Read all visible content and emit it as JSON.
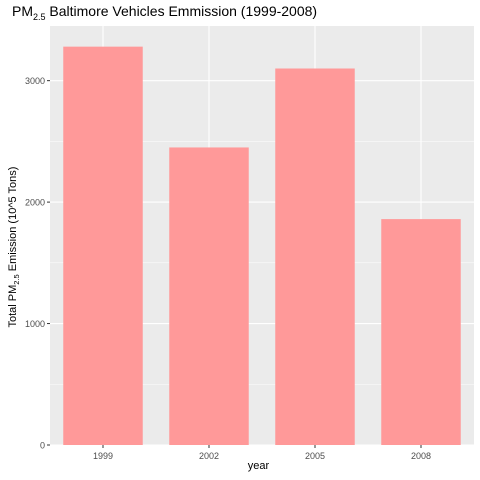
{
  "title": {
    "main": "PM",
    "sub": "2.5",
    "rest": " Baltimore Vehicles Emmission (1999-2008)"
  },
  "colors": {
    "panel": "#EBEBEB",
    "grid": "#FFFFFF",
    "bar": "#FF9999",
    "tick_text": "#4D4D4D"
  },
  "chart_data": {
    "type": "bar",
    "categories": [
      "1999",
      "2002",
      "2005",
      "2008"
    ],
    "values": [
      3280,
      2450,
      3100,
      1860
    ],
    "xlabel": "year",
    "ylabel": {
      "pre": "Total PM",
      "sub": "2.5",
      "post": " Emission (10^5 Tons)"
    },
    "yticks": [
      0,
      1000,
      2000,
      3000
    ],
    "ylim": [
      0,
      3450
    ],
    "grid": true,
    "legend": "none"
  }
}
